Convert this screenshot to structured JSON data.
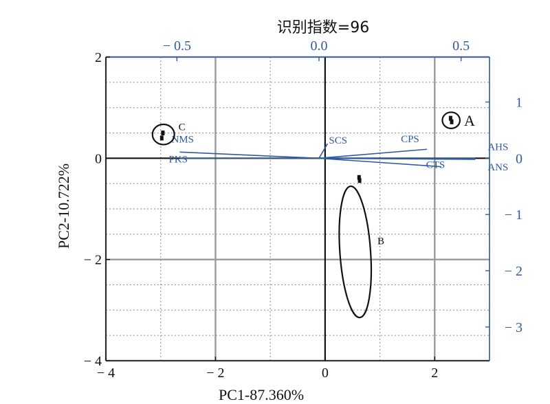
{
  "chart_data": {
    "type": "scatter",
    "title": "识别指数=96",
    "xlabel": "PC1-87.360%",
    "ylabel": "PC2-10.722%",
    "xlim": [
      -4,
      3
    ],
    "ylim": [
      -4,
      2
    ],
    "x_ticks": [
      -4,
      -2,
      0,
      2
    ],
    "x_tick_labels": [
      "− 4",
      "− 2",
      "0",
      "2"
    ],
    "y_ticks": [
      -4,
      -2,
      0,
      2
    ],
    "y_tick_labels": [
      "− 4",
      "− 2",
      "0",
      "2"
    ],
    "top_axis": {
      "lim": [
        -0.75,
        0.6
      ],
      "ticks": [
        -0.5,
        0.0,
        0.5
      ],
      "tick_labels": [
        "− 0.5",
        "0.0",
        "0.5"
      ]
    },
    "right_axis": {
      "lim": [
        -3.6,
        1.8
      ],
      "ticks": [
        -3,
        -2,
        -1,
        0,
        1
      ],
      "tick_labels": [
        "− 3",
        "− 2",
        "− 1",
        "0",
        "1"
      ]
    },
    "grid": true,
    "groups": [
      {
        "name": "A",
        "center": [
          2.3,
          0.75
        ],
        "radius": [
          0.16,
          0.16
        ],
        "points": [
          [
            2.29,
            0.79
          ],
          [
            2.31,
            0.72
          ]
        ]
      },
      {
        "name": "B",
        "center": [
          0.55,
          -1.85
        ],
        "radius": [
          0.28,
          1.3
        ],
        "points": [
          [
            0.62,
            -0.38
          ],
          [
            0.63,
            -0.44
          ]
        ]
      },
      {
        "name": "C",
        "center": [
          -2.95,
          0.47
        ],
        "radius": [
          0.2,
          0.2
        ],
        "points": [
          [
            -2.96,
            0.5
          ],
          [
            -2.98,
            0.4
          ]
        ]
      }
    ],
    "loadings": [
      {
        "name": "SCS",
        "x": 0.03,
        "y": 0.26
      },
      {
        "name": "CPS",
        "x": 0.38,
        "y": 0.16
      },
      {
        "name": "AHS",
        "x": 0.55,
        "y": 0.0
      },
      {
        "name": "ANS",
        "x": 0.55,
        "y": -0.02
      },
      {
        "name": "CTS",
        "x": 0.43,
        "y": -0.15
      },
      {
        "name": "NMS",
        "x": -0.49,
        "y": 0.11
      },
      {
        "name": "PKS",
        "x": -0.49,
        "y": 0.0
      }
    ],
    "colors": {
      "scores": "#111111",
      "loadings": "#2f5aa0",
      "grid": "#9a9a9a"
    }
  }
}
